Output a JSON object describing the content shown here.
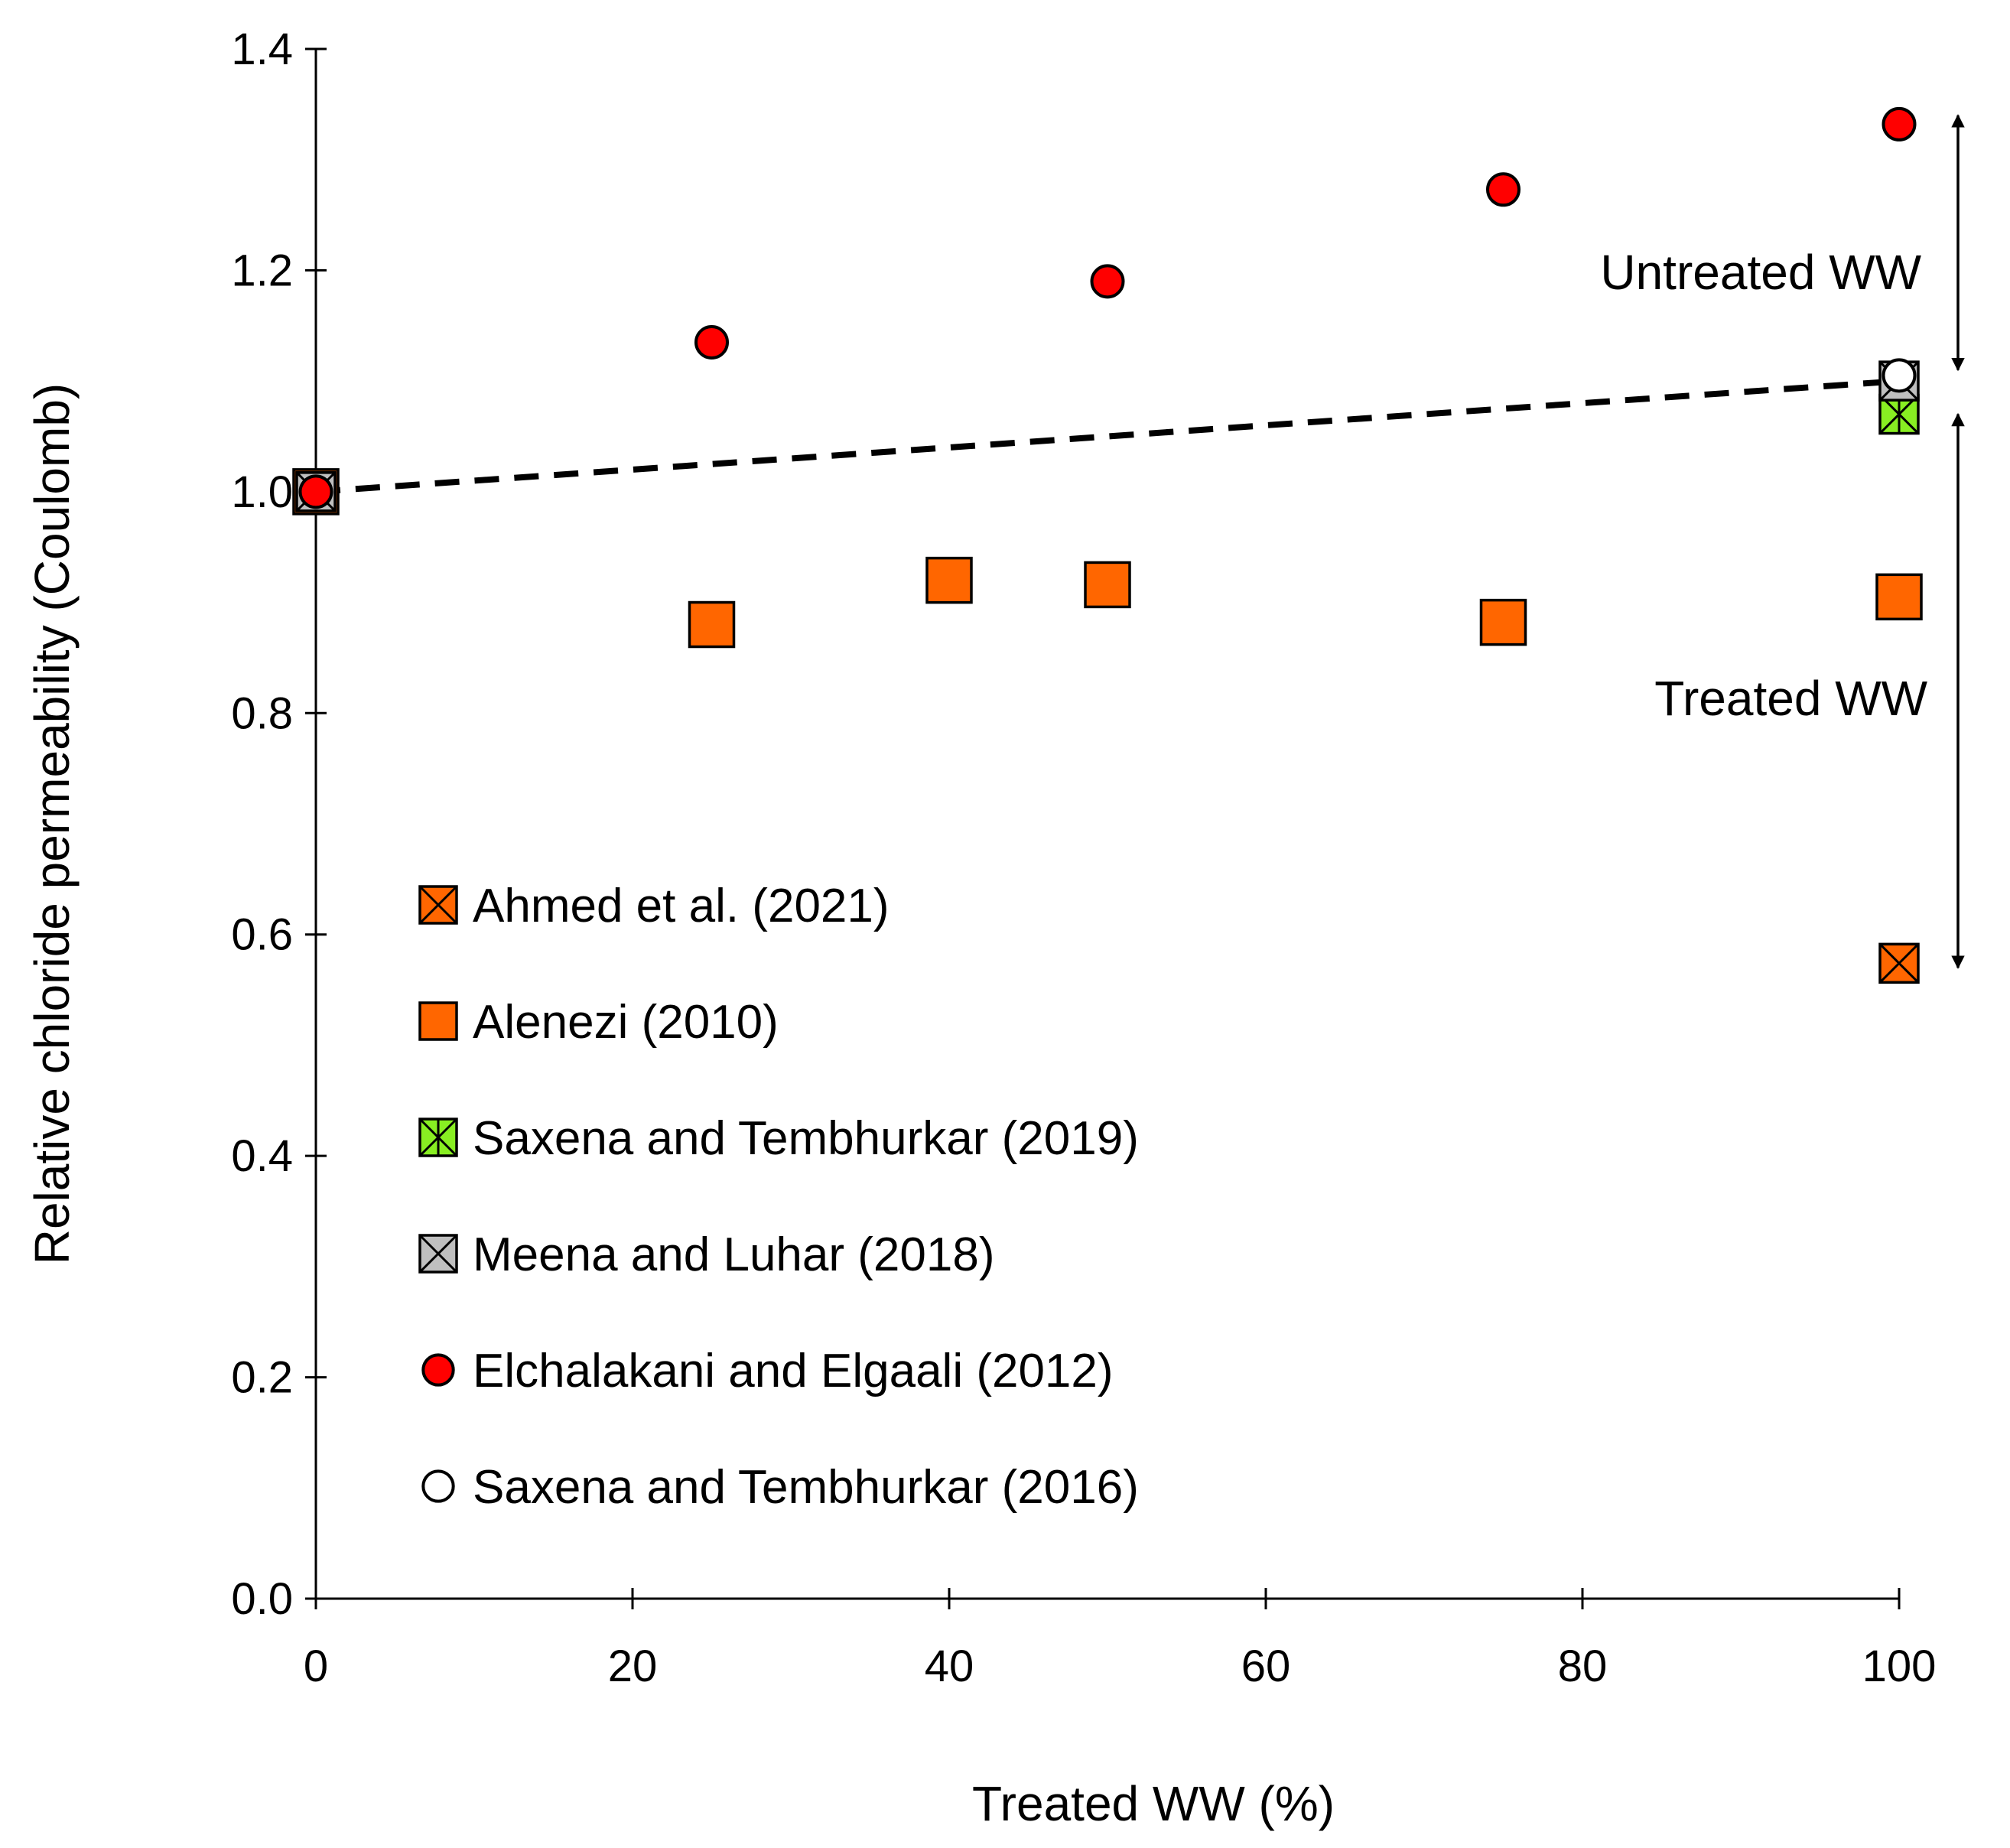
{
  "chart_data": {
    "type": "scatter",
    "xlabel": "Treated WW (%)",
    "ylabel": "Relative chloride permeability (Coulomb)",
    "xlim": [
      0,
      100
    ],
    "ylim": [
      0,
      1.4
    ],
    "xticks": [
      0,
      20,
      40,
      60,
      80,
      100
    ],
    "yticks": [
      0.0,
      0.2,
      0.4,
      0.6,
      0.8,
      1.0,
      1.2,
      1.4
    ],
    "xtick_labels": [
      "0",
      "20",
      "40",
      "60",
      "80",
      "100"
    ],
    "ytick_labels": [
      "0.0",
      "0.2",
      "0.4",
      "0.6",
      "0.8",
      "1.0",
      "1.2",
      "1.4"
    ],
    "grid": false,
    "legend_position": "left-center",
    "series": [
      {
        "name": "Ahmed et al. (2021)",
        "marker": "square-x",
        "fill": "#FF6600",
        "points": [
          {
            "x": 0,
            "y": 1.0
          },
          {
            "x": 100,
            "y": 0.574
          }
        ]
      },
      {
        "name": "Alenezi (2010)",
        "marker": "square",
        "fill": "#FF6600",
        "points": [
          {
            "x": 0,
            "y": 1.0
          },
          {
            "x": 25,
            "y": 0.88
          },
          {
            "x": 40,
            "y": 0.92
          },
          {
            "x": 50,
            "y": 0.916
          },
          {
            "x": 75,
            "y": 0.882
          },
          {
            "x": 100,
            "y": 0.905
          }
        ]
      },
      {
        "name": "Saxena and Tembhurkar (2019)",
        "marker": "square-asterisk",
        "fill": "#88EE22",
        "points": [
          {
            "x": 0,
            "y": 1.0
          },
          {
            "x": 100,
            "y": 1.07
          }
        ]
      },
      {
        "name": "Meena and Luhar (2018)",
        "marker": "square-x",
        "fill": "#BFBFBF",
        "points": [
          {
            "x": 0,
            "y": 1.0
          },
          {
            "x": 100,
            "y": 1.1
          }
        ]
      },
      {
        "name": "Elchalakani and Elgaali (2012)",
        "marker": "circle",
        "fill": "#FF0000",
        "points": [
          {
            "x": 0,
            "y": 1.0
          },
          {
            "x": 25,
            "y": 1.135
          },
          {
            "x": 50,
            "y": 1.19
          },
          {
            "x": 75,
            "y": 1.273
          },
          {
            "x": 100,
            "y": 1.332
          }
        ]
      },
      {
        "name": "Saxena and Tembhurkar (2016)",
        "marker": "circle",
        "fill": "#FFFFFF",
        "points": [
          {
            "x": 100,
            "y": 1.105
          }
        ]
      }
    ],
    "trendline": {
      "style": "dashed",
      "color": "#000000",
      "points": [
        {
          "x": 0,
          "y": 1.0
        },
        {
          "x": 100,
          "y": 1.1
        }
      ]
    },
    "annotations": [
      {
        "text": "Untreated WW",
        "x": 100,
        "y_range": [
          1.11,
          1.34
        ]
      },
      {
        "text": "Treated WW",
        "x": 100,
        "y_range": [
          0.57,
          1.07
        ]
      }
    ]
  }
}
